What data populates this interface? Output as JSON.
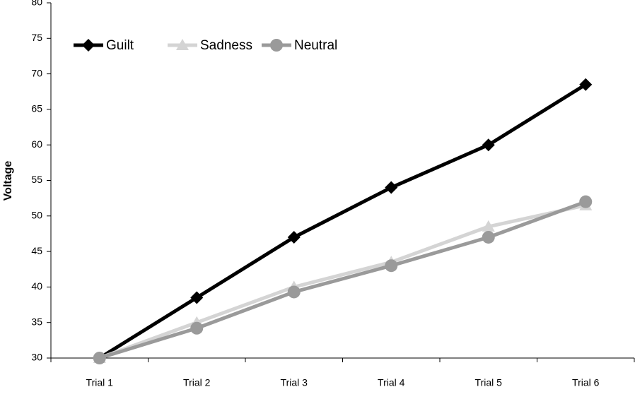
{
  "chart_data": {
    "type": "line",
    "y_label": "Voltage",
    "categories": [
      "Trial 1",
      "Trial 2",
      "Trial 3",
      "Trial 4",
      "Trial 5",
      "Trial 6"
    ],
    "series": [
      {
        "name": "Guilt",
        "color": "#000000",
        "marker": "diamond",
        "values": [
          30,
          38.5,
          47,
          54,
          60,
          68.5
        ]
      },
      {
        "name": "Sadness",
        "color": "#d4d4d4",
        "marker": "triangle",
        "values": [
          30,
          35,
          40,
          43.5,
          48.5,
          51.5
        ]
      },
      {
        "name": "Neutral",
        "color": "#9a9a9a",
        "marker": "circle",
        "values": [
          30,
          34.2,
          39.3,
          43,
          47,
          52
        ]
      }
    ],
    "ylim": [
      30,
      80
    ],
    "yticks": [
      30,
      35,
      40,
      45,
      50,
      55,
      60,
      65,
      70,
      75,
      80
    ],
    "grid": false,
    "legend": "upper left"
  }
}
